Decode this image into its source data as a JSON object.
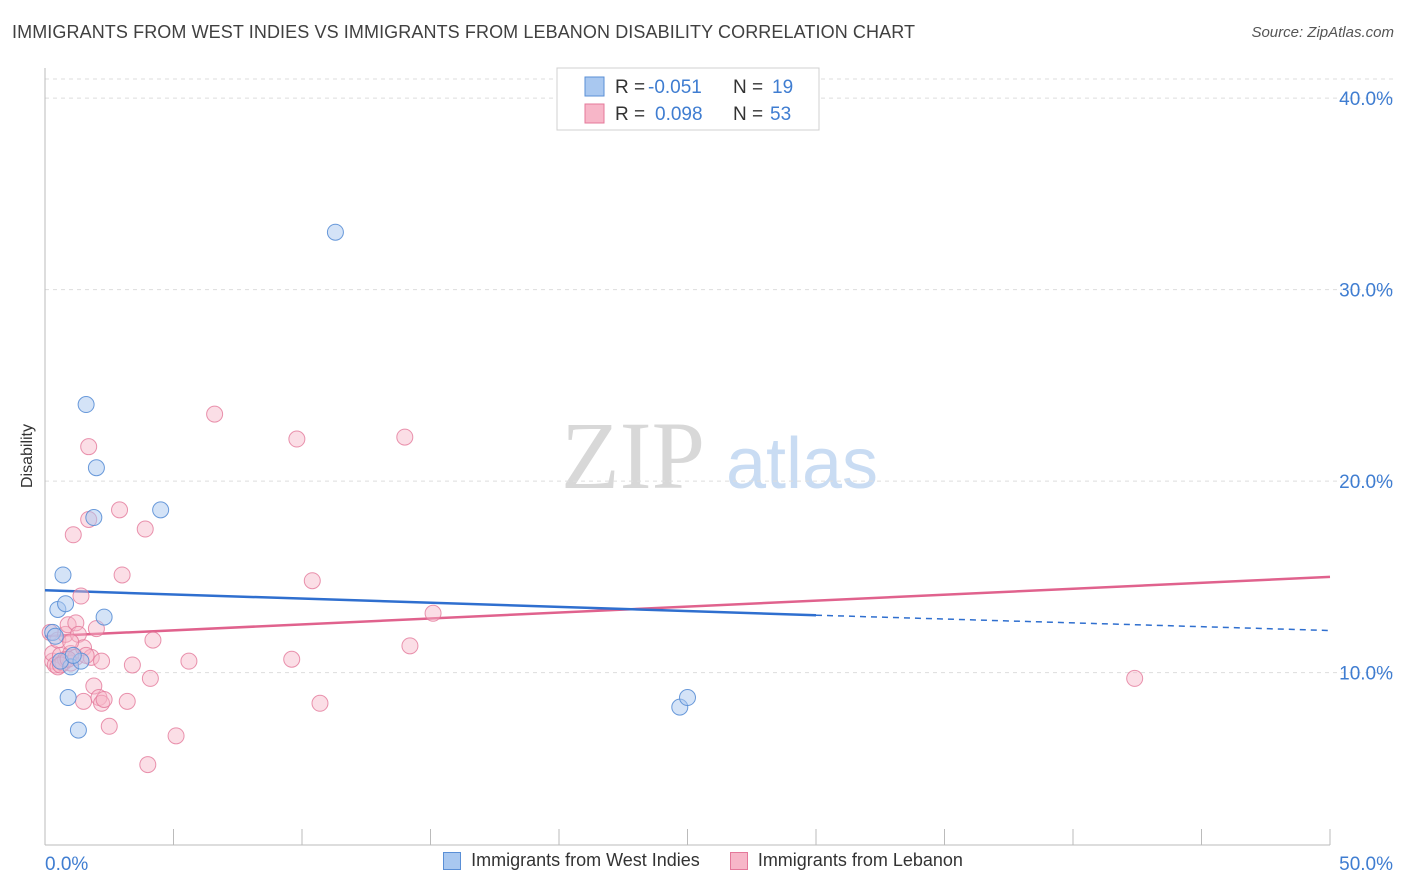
{
  "title": "IMMIGRANTS FROM WEST INDIES VS IMMIGRANTS FROM LEBANON DISABILITY CORRELATION CHART",
  "source": "Source: ZipAtlas.com",
  "watermark": {
    "zip": "ZIP",
    "atlas": "atlas"
  },
  "colors": {
    "west_indies_fill": "#a9c8f0",
    "west_indies_stroke": "#5a8fd6",
    "west_indies_line": "#2f6fcf",
    "lebanon_fill": "#f7b6c8",
    "lebanon_stroke": "#e4789a",
    "lebanon_line": "#e0628d",
    "tick_label": "#3f7dd1"
  },
  "stats_legend": [
    {
      "r_label": "R =",
      "r_value": "-0.051",
      "n_label": "N =",
      "n_value": "19"
    },
    {
      "r_label": "R =",
      "r_value": "0.098",
      "n_label": "N =",
      "n_value": "53"
    }
  ],
  "bottom_legend": [
    {
      "label": "Immigrants from West Indies"
    },
    {
      "label": "Immigrants from Lebanon"
    }
  ],
  "chart_data": {
    "type": "scatter",
    "title": "IMMIGRANTS FROM WEST INDIES VS IMMIGRANTS FROM LEBANON DISABILITY CORRELATION CHART",
    "xlabel": "",
    "ylabel": "Disability",
    "xlim": [
      0,
      50
    ],
    "ylim": [
      1,
      41
    ],
    "x_tick_labels": [
      "0.0%",
      "50.0%"
    ],
    "y_ticks": [
      10,
      20,
      30,
      40
    ],
    "y_tick_labels": [
      "10.0%",
      "20.0%",
      "30.0%",
      "40.0%"
    ],
    "grid": true,
    "series": [
      {
        "name": "Immigrants from West Indies",
        "r": -0.051,
        "n": 19,
        "trend": {
          "x0": 0,
          "y0": 14.3,
          "x1": 30,
          "y1": 13.0,
          "dash_to_x": 50,
          "dash_to_y": 12.2
        },
        "points": [
          [
            0.3,
            12.1
          ],
          [
            0.4,
            11.9
          ],
          [
            0.5,
            13.3
          ],
          [
            0.7,
            15.1
          ],
          [
            0.8,
            13.6
          ],
          [
            0.9,
            8.7
          ],
          [
            1.0,
            10.3
          ],
          [
            1.3,
            7.0
          ],
          [
            1.4,
            10.6
          ],
          [
            1.6,
            24.0
          ],
          [
            1.9,
            18.1
          ],
          [
            2.0,
            20.7
          ],
          [
            2.3,
            12.9
          ],
          [
            4.5,
            18.5
          ],
          [
            11.3,
            33.0
          ],
          [
            24.7,
            8.2
          ],
          [
            25.0,
            8.7
          ],
          [
            0.6,
            10.6
          ],
          [
            1.1,
            10.9
          ]
        ]
      },
      {
        "name": "Immigrants from Lebanon",
        "r": 0.098,
        "n": 53,
        "trend": {
          "x0": 0,
          "y0": 11.9,
          "x1": 50,
          "y1": 15.0
        },
        "points": [
          [
            0.2,
            12.1
          ],
          [
            0.3,
            10.6
          ],
          [
            0.3,
            11.0
          ],
          [
            0.4,
            10.4
          ],
          [
            0.5,
            11.7
          ],
          [
            0.5,
            10.3
          ],
          [
            0.6,
            10.9
          ],
          [
            0.7,
            10.5
          ],
          [
            0.8,
            12.0
          ],
          [
            0.8,
            10.7
          ],
          [
            0.9,
            12.5
          ],
          [
            1.0,
            11.0
          ],
          [
            1.0,
            10.5
          ],
          [
            1.1,
            17.2
          ],
          [
            1.2,
            10.8
          ],
          [
            1.2,
            12.6
          ],
          [
            1.3,
            12.0
          ],
          [
            1.4,
            14.0
          ],
          [
            1.5,
            8.5
          ],
          [
            1.5,
            11.3
          ],
          [
            1.7,
            21.8
          ],
          [
            1.7,
            18.0
          ],
          [
            1.8,
            10.8
          ],
          [
            1.9,
            9.3
          ],
          [
            2.0,
            12.3
          ],
          [
            2.1,
            8.7
          ],
          [
            2.2,
            10.6
          ],
          [
            2.2,
            8.4
          ],
          [
            2.5,
            7.2
          ],
          [
            2.9,
            18.5
          ],
          [
            3.0,
            15.1
          ],
          [
            3.2,
            8.5
          ],
          [
            3.4,
            10.4
          ],
          [
            3.9,
            17.5
          ],
          [
            4.1,
            9.7
          ],
          [
            4.0,
            5.2
          ],
          [
            4.2,
            11.7
          ],
          [
            5.1,
            6.7
          ],
          [
            5.6,
            10.6
          ],
          [
            6.6,
            23.5
          ],
          [
            9.6,
            10.7
          ],
          [
            9.8,
            22.2
          ],
          [
            10.4,
            14.8
          ],
          [
            10.7,
            8.4
          ],
          [
            14.0,
            22.3
          ],
          [
            14.2,
            11.4
          ],
          [
            15.1,
            13.1
          ],
          [
            42.4,
            9.7
          ],
          [
            0.6,
            10.4
          ],
          [
            0.9,
            10.7
          ],
          [
            1.0,
            11.6
          ],
          [
            1.6,
            10.9
          ],
          [
            2.3,
            8.6
          ]
        ]
      }
    ]
  }
}
